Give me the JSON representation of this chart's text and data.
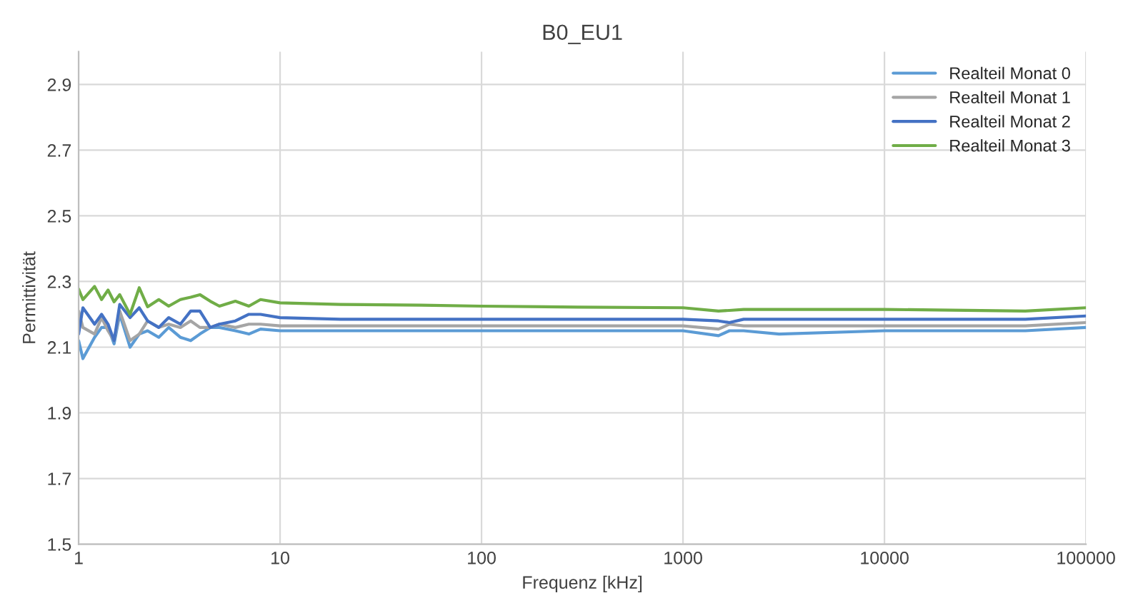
{
  "chart_data": {
    "type": "line",
    "title": "B0_EU1",
    "xlabel": "Frequenz [kHz]",
    "ylabel": "Permittivität",
    "x": [
      1,
      1.05,
      1.2,
      1.3,
      1.4,
      1.5,
      1.6,
      1.8,
      2,
      2.2,
      2.5,
      2.8,
      3.2,
      3.6,
      4,
      4.5,
      5,
      6,
      7,
      8,
      10,
      20,
      50,
      100,
      300,
      1000,
      1500,
      1700,
      2000,
      3000,
      10000,
      50000,
      100000
    ],
    "series": [
      {
        "name": "Realteil Monat 0",
        "color": "#5b9bd5",
        "values": [
          2.12,
          2.065,
          2.13,
          2.16,
          2.16,
          2.11,
          2.2,
          2.1,
          2.14,
          2.15,
          2.13,
          2.16,
          2.13,
          2.12,
          2.14,
          2.16,
          2.16,
          2.15,
          2.14,
          2.155,
          2.15,
          2.15,
          2.15,
          2.15,
          2.15,
          2.15,
          2.135,
          2.15,
          2.15,
          2.14,
          2.15,
          2.15,
          2.16
        ]
      },
      {
        "name": "Realteil Monat 1",
        "color": "#a5a5a5",
        "values": [
          2.21,
          2.16,
          2.14,
          2.19,
          2.15,
          2.12,
          2.21,
          2.12,
          2.14,
          2.18,
          2.16,
          2.17,
          2.16,
          2.18,
          2.16,
          2.16,
          2.17,
          2.16,
          2.17,
          2.17,
          2.165,
          2.165,
          2.165,
          2.165,
          2.165,
          2.165,
          2.155,
          2.17,
          2.165,
          2.165,
          2.165,
          2.165,
          2.175
        ]
      },
      {
        "name": "Realteil Monat 2",
        "color": "#4472c4",
        "values": [
          2.14,
          2.22,
          2.17,
          2.2,
          2.17,
          2.12,
          2.23,
          2.19,
          2.22,
          2.18,
          2.16,
          2.19,
          2.17,
          2.21,
          2.21,
          2.16,
          2.17,
          2.18,
          2.2,
          2.2,
          2.19,
          2.185,
          2.185,
          2.185,
          2.185,
          2.185,
          2.18,
          2.175,
          2.185,
          2.185,
          2.185,
          2.185,
          2.195
        ]
      },
      {
        "name": "Realteil Monat 3",
        "color": "#70ad47",
        "values": [
          2.277,
          2.245,
          2.285,
          2.245,
          2.274,
          2.238,
          2.26,
          2.2,
          2.281,
          2.223,
          2.245,
          2.225,
          2.245,
          2.252,
          2.26,
          2.24,
          2.225,
          2.24,
          2.225,
          2.245,
          2.235,
          2.23,
          2.228,
          2.225,
          2.222,
          2.22,
          2.21,
          2.212,
          2.215,
          2.215,
          2.215,
          2.21,
          2.22
        ]
      }
    ],
    "log": "x",
    "xlim": [
      1,
      100000
    ],
    "xticks": [
      1,
      10,
      100,
      1000,
      10000,
      100000
    ],
    "ylim": [
      1.5,
      3.0
    ],
    "yticks": [
      1.5,
      1.7,
      1.9,
      2.1,
      2.3,
      2.5,
      2.7,
      2.9
    ],
    "grid": true,
    "legend": "top right",
    "line_style": "solid",
    "marker": "none"
  }
}
